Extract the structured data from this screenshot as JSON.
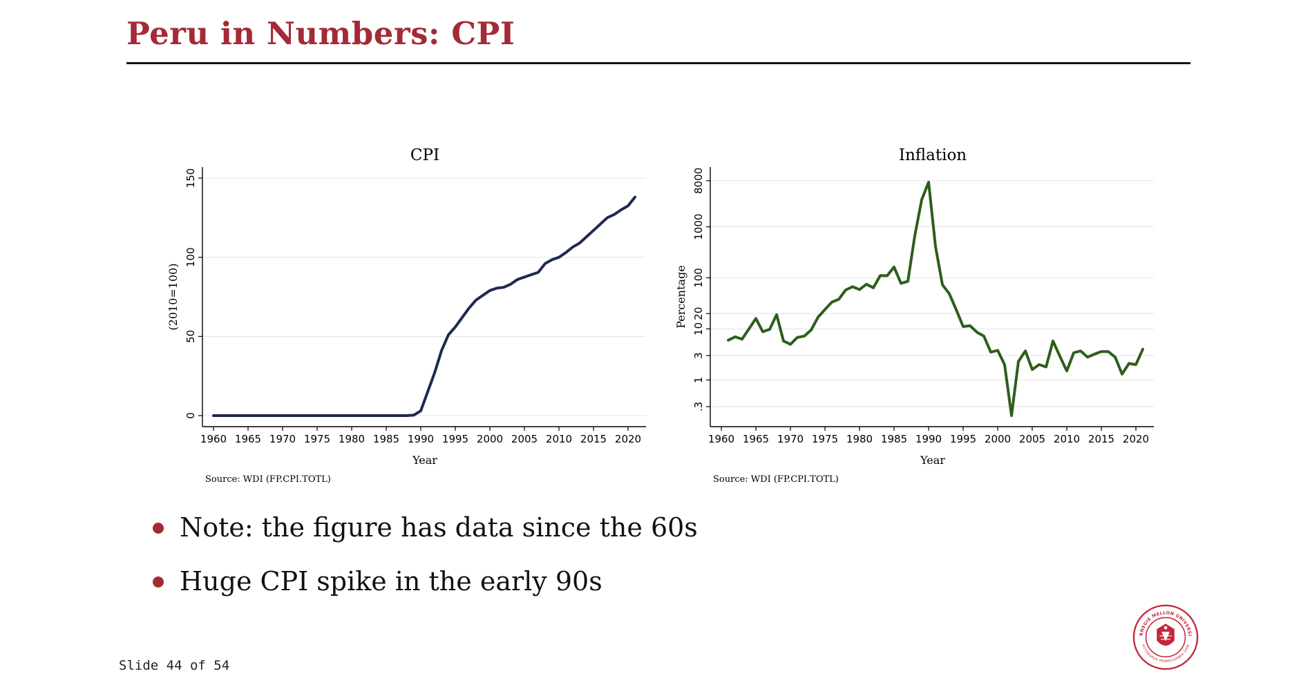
{
  "slide": {
    "title": "Peru in Numbers: CPI",
    "bullets": [
      "Note: the figure has data since the 60s",
      "Huge CPI spike in the early 90s"
    ],
    "counter": "Slide 44 of 54",
    "accent_color": "#a42a35",
    "logo": {
      "icon": "carnegie-mellon-seal-icon",
      "text_top": "CARNEGIE MELLON UNIVERSITY",
      "text_bottom": "PITTSBURGH PENNSYLVANIA 1900"
    }
  },
  "chart_data": [
    {
      "type": "line",
      "title": "CPI",
      "xlabel": "Year",
      "ylabel": "(2010=100)",
      "note": "Source: WDI (FP.CPI.TOTL)",
      "color": "#1e2a4f",
      "xlim": [
        1960,
        2021
      ],
      "ylim": [
        0,
        150
      ],
      "x_ticks": [
        1960,
        1965,
        1970,
        1975,
        1980,
        1985,
        1990,
        1995,
        2000,
        2005,
        2010,
        2015,
        2020
      ],
      "y_ticks": [
        0,
        50,
        100,
        150
      ],
      "grid": true,
      "series": [
        {
          "x": [
            1960,
            1965,
            1970,
            1975,
            1980,
            1985,
            1988,
            1989,
            1990,
            1991,
            1992,
            1993,
            1994,
            1995,
            1996,
            1997,
            1998,
            1999,
            2000,
            2001,
            2002,
            2003,
            2004,
            2005,
            2006,
            2007,
            2008,
            2009,
            2010,
            2011,
            2012,
            2013,
            2014,
            2015,
            2016,
            2017,
            2018,
            2019,
            2020,
            2021
          ],
          "y": [
            0,
            0,
            0,
            0,
            0,
            0,
            0,
            0.3,
            3,
            15,
            27,
            41,
            51,
            56,
            62,
            68,
            73,
            76,
            79,
            80.5,
            81,
            83,
            86,
            87.5,
            89,
            90.5,
            96,
            98.5,
            100,
            103,
            106.5,
            109,
            113,
            117,
            121,
            125,
            127,
            130,
            132.5,
            138
          ]
        }
      ]
    },
    {
      "type": "line",
      "title": "Inflation",
      "xlabel": "Year",
      "ylabel": "Percentage",
      "note": "Source: WDI (FP.CPI.TOTL)",
      "color": "#2d5e1c",
      "scale": "log",
      "xlim": [
        1960,
        2021
      ],
      "ylim": [
        0.2,
        9000
      ],
      "x_ticks": [
        1960,
        1965,
        1970,
        1975,
        1980,
        1985,
        1990,
        1995,
        2000,
        2005,
        2010,
        2015,
        2020
      ],
      "y_ticks": [
        0.3,
        1,
        3,
        10,
        20,
        100,
        1000,
        8000
      ],
      "y_tick_labels": [
        ".3",
        "1",
        "3",
        "10",
        "20",
        "100",
        "1000",
        "8000"
      ],
      "grid": true,
      "series": [
        {
          "x": [
            1961,
            1962,
            1963,
            1964,
            1965,
            1966,
            1967,
            1968,
            1969,
            1970,
            1971,
            1972,
            1973,
            1974,
            1975,
            1976,
            1977,
            1978,
            1979,
            1980,
            1981,
            1982,
            1983,
            1984,
            1985,
            1986,
            1987,
            1988,
            1989,
            1990,
            1991,
            1992,
            1993,
            1994,
            1995,
            1996,
            1997,
            1998,
            1999,
            2000,
            2001,
            2002,
            2003,
            2004,
            2005,
            2006,
            2007,
            2008,
            2009,
            2010,
            2011,
            2012,
            2013,
            2014,
            2015,
            2016,
            2017,
            2018,
            2019,
            2020,
            2021
          ],
          "y": [
            6,
            7,
            6.3,
            10,
            16,
            8.8,
            9.8,
            19,
            5.8,
            5,
            6.8,
            7.2,
            9.5,
            17,
            24,
            33.5,
            38,
            58,
            67,
            59,
            75,
            64,
            111,
            110,
            163,
            78,
            85.9,
            667,
            3399,
            7482,
            409.5,
            73.5,
            48.6,
            23.7,
            11.1,
            11.5,
            8.6,
            7.2,
            3.5,
            3.8,
            2,
            0.2,
            2.3,
            3.7,
            1.6,
            2,
            1.8,
            5.8,
            2.9,
            1.5,
            3.4,
            3.7,
            2.8,
            3.2,
            3.6,
            3.6,
            2.8,
            1.3,
            2.1,
            2,
            4
          ]
        }
      ]
    }
  ]
}
